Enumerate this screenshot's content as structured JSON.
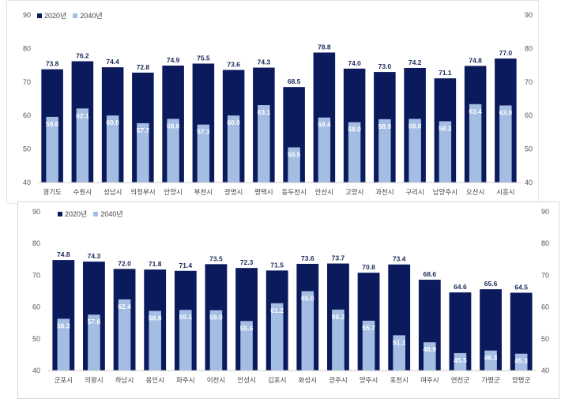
{
  "colors": {
    "s2020": "#0b1a5c",
    "s2040": "#a3bde3",
    "label2020": "#1a2a5a",
    "label2040": "#ffffff",
    "grid": "#e6e6e6"
  },
  "chart_data": [
    {
      "type": "bar",
      "legend": [
        "2020년",
        "2040년"
      ],
      "legend_position": "top-left",
      "ylim": [
        40,
        90
      ],
      "yticks": [
        40,
        50,
        60,
        70,
        80,
        90
      ],
      "categories": [
        "경기도",
        "수원시",
        "성남시",
        "의정부시",
        "안양시",
        "부천시",
        "광명시",
        "평택시",
        "동두천시",
        "안산시",
        "고양시",
        "과천시",
        "구리시",
        "남양주시",
        "오산시",
        "시흥시"
      ],
      "series": [
        {
          "name": "2020년",
          "values": [
            73.8,
            76.2,
            74.4,
            72.8,
            74.9,
            75.5,
            73.6,
            74.3,
            68.5,
            78.8,
            74.0,
            73.0,
            74.2,
            71.1,
            74.8,
            77.0
          ]
        },
        {
          "name": "2040년",
          "values": [
            59.6,
            62.1,
            60.0,
            57.7,
            59.0,
            57.3,
            60.0,
            63.1,
            50.5,
            59.4,
            58.0,
            58.9,
            59.0,
            58.3,
            63.4,
            63.0
          ]
        }
      ]
    },
    {
      "type": "bar",
      "legend": [
        "2020년",
        "2040년"
      ],
      "legend_position": "top-left",
      "ylim": [
        40,
        90
      ],
      "yticks": [
        40,
        50,
        60,
        70,
        80,
        90
      ],
      "categories": [
        "군포시",
        "의왕시",
        "하남시",
        "용인시",
        "파주시",
        "이천시",
        "안성시",
        "김포시",
        "화성시",
        "광주시",
        "양주시",
        "포천시",
        "여주시",
        "연천군",
        "가평군",
        "양평군"
      ],
      "series": [
        {
          "name": "2020년",
          "values": [
            74.8,
            74.3,
            72.0,
            71.8,
            71.4,
            73.5,
            72.3,
            71.5,
            73.6,
            73.7,
            70.8,
            73.4,
            68.6,
            64.6,
            65.6,
            64.5
          ]
        },
        {
          "name": "2040년",
          "values": [
            56.3,
            57.6,
            62.4,
            58.8,
            59.1,
            59.0,
            55.6,
            61.2,
            65.0,
            59.2,
            55.7,
            51.1,
            48.9,
            45.5,
            46.3,
            45.3
          ]
        }
      ]
    }
  ]
}
